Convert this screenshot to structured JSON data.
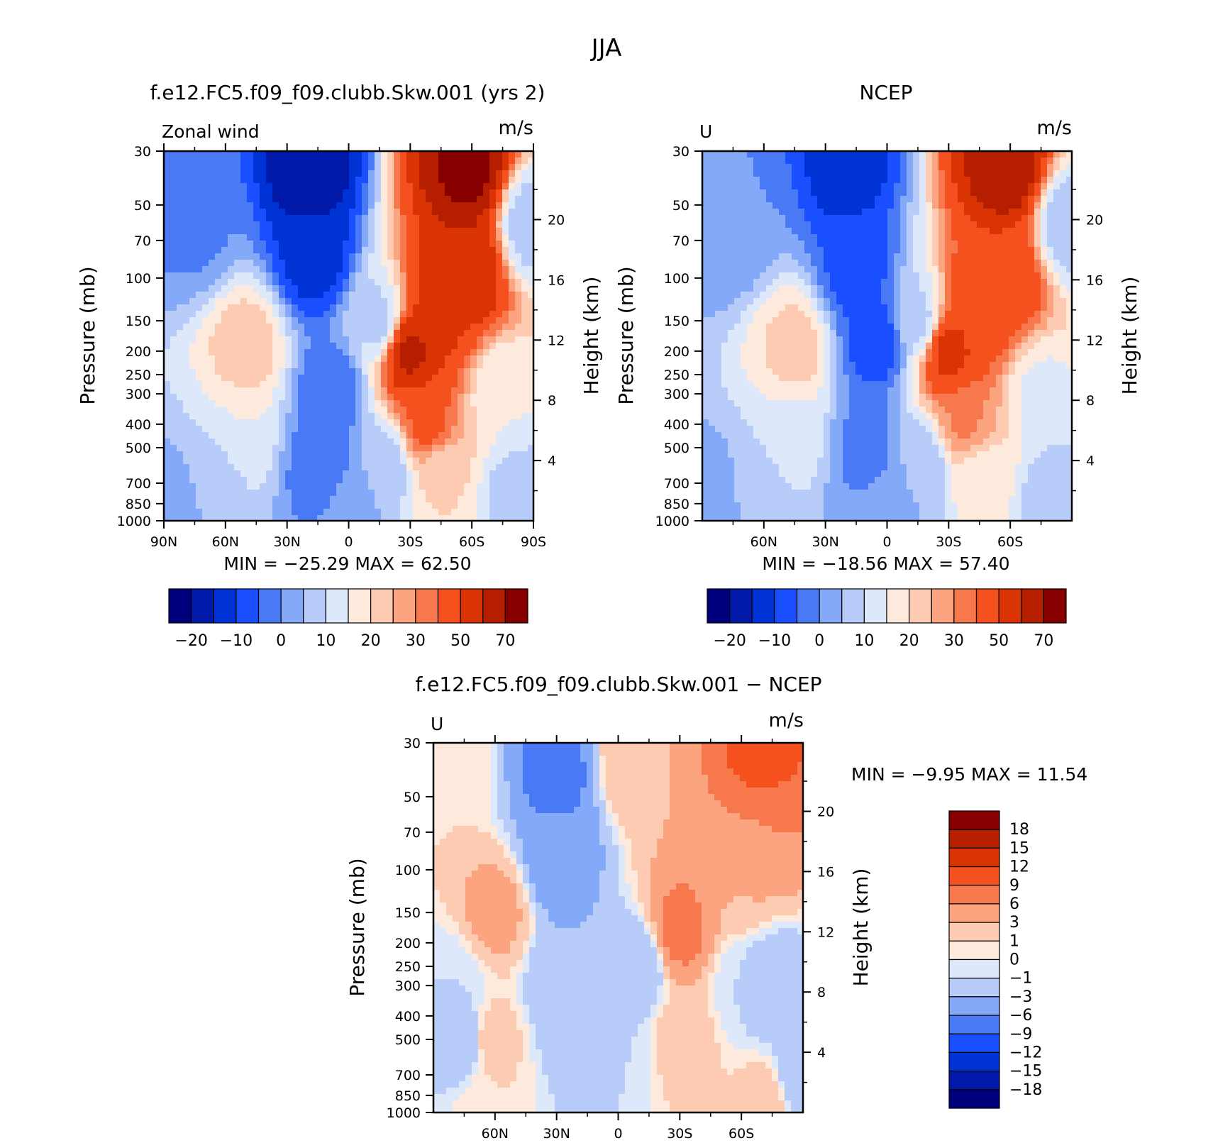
{
  "page": {
    "title": "JJA"
  },
  "chart_data": [
    {
      "type": "heatmap",
      "title": "f.e12.FC5.f09_f09.clubb.Skw.001 (yrs 2)",
      "left_string": "Zonal wind",
      "right_string": "m/s",
      "ylabel": "Pressure (mb)",
      "ylabel2": "Height (km)",
      "x_ticks": [
        "90N",
        "60N",
        "30N",
        "0",
        "30S",
        "60S",
        "90S"
      ],
      "x_tick_values": [
        90,
        60,
        30,
        0,
        -30,
        -60,
        -90
      ],
      "xlim": [
        90,
        -90
      ],
      "y_ticks": [
        30,
        50,
        70,
        100,
        150,
        200,
        250,
        300,
        400,
        500,
        700,
        850,
        1000
      ],
      "ylim": [
        1000,
        30
      ],
      "y_scale": "log",
      "height_ticks": [
        20,
        16,
        12,
        8,
        4
      ],
      "stats": "MIN =  −25.29   MAX =   62.50",
      "min": -25.29,
      "max": 62.5,
      "levels": [
        -25,
        -20,
        -15,
        -10,
        -5,
        0,
        5,
        10,
        15,
        20,
        25,
        30,
        40,
        50,
        60,
        70
      ],
      "colorbar_labels": [
        "−20",
        "−10",
        "0",
        "10",
        "20",
        "30",
        "50",
        "70"
      ],
      "colorbar_label_boundaries": [
        1,
        3,
        5,
        7,
        9,
        11,
        13,
        15
      ],
      "colorbar_colors": [
        "#00007f",
        "#0019a8",
        "#0033d6",
        "#1a4fff",
        "#4a79f5",
        "#84a9f8",
        "#b7ccf9",
        "#dde9fa",
        "#fdeadc",
        "#fccbb2",
        "#fba47f",
        "#f8784d",
        "#f4511e",
        "#da3405",
        "#b51f00",
        "#870000"
      ],
      "features": [
        {
          "lat": 18,
          "p": 35,
          "u": -25
        },
        {
          "lat": 16,
          "p": 80,
          "u": -18
        },
        {
          "lat": 8,
          "p": 300,
          "u": -9
        },
        {
          "lat": 13,
          "p": 600,
          "u": -9
        },
        {
          "lat": 0,
          "p": 900,
          "u": -3
        },
        {
          "lat": 75,
          "p": 60,
          "u": -6
        },
        {
          "lat": 50,
          "p": 200,
          "u": 18
        },
        {
          "lat": 52,
          "p": 420,
          "u": 10
        },
        {
          "lat": 65,
          "p": 700,
          "u": 2
        },
        {
          "lat": 85,
          "p": 900,
          "u": -3
        },
        {
          "lat": -30,
          "p": 200,
          "u": 52
        },
        {
          "lat": -38,
          "p": 400,
          "u": 32
        },
        {
          "lat": -45,
          "p": 650,
          "u": 15
        },
        {
          "lat": -58,
          "p": 35,
          "u": 63
        },
        {
          "lat": -58,
          "p": 90,
          "u": 50
        },
        {
          "lat": -45,
          "p": 130,
          "u": 42
        },
        {
          "lat": -18,
          "p": 600,
          "u": 1
        },
        {
          "lat": -15,
          "p": 150,
          "u": 3
        },
        {
          "lat": -75,
          "p": 300,
          "u": 10
        },
        {
          "lat": -82,
          "p": 800,
          "u": 2
        },
        {
          "lat": -88,
          "p": 60,
          "u": 2
        }
      ]
    },
    {
      "type": "heatmap",
      "title": "NCEP",
      "left_string": "U",
      "right_string": "m/s",
      "ylabel": "Pressure (mb)",
      "ylabel2": "Height (km)",
      "x_ticks": [
        "60N",
        "30N",
        "0",
        "30S",
        "60S"
      ],
      "x_tick_values": [
        60,
        30,
        0,
        -30,
        -60
      ],
      "xlim": [
        90,
        -90
      ],
      "y_ticks": [
        30,
        50,
        70,
        100,
        150,
        200,
        250,
        300,
        400,
        500,
        700,
        850,
        1000
      ],
      "ylim": [
        1000,
        30
      ],
      "y_scale": "log",
      "height_ticks": [
        20,
        16,
        12,
        8,
        4
      ],
      "stats": "MIN =  −18.56   MAX =   57.40",
      "min": -18.56,
      "max": 57.4,
      "levels": [
        -25,
        -20,
        -15,
        -10,
        -5,
        0,
        5,
        10,
        15,
        20,
        25,
        30,
        40,
        50,
        60,
        70
      ],
      "colorbar_labels": [
        "−20",
        "−10",
        "0",
        "10",
        "20",
        "30",
        "50",
        "70"
      ],
      "colorbar_label_boundaries": [
        1,
        3,
        5,
        7,
        9,
        11,
        13,
        15
      ],
      "colorbar_colors": [
        "#00007f",
        "#0019a8",
        "#0033d6",
        "#1a4fff",
        "#4a79f5",
        "#84a9f8",
        "#b7ccf9",
        "#dde9fa",
        "#fdeadc",
        "#fccbb2",
        "#fba47f",
        "#f8784d",
        "#f4511e",
        "#da3405",
        "#b51f00",
        "#870000"
      ],
      "features": [
        {
          "lat": 18,
          "p": 35,
          "u": -18
        },
        {
          "lat": 14,
          "p": 90,
          "u": -13
        },
        {
          "lat": 5,
          "p": 180,
          "u": -14
        },
        {
          "lat": 10,
          "p": 500,
          "u": -7
        },
        {
          "lat": 0,
          "p": 900,
          "u": -4
        },
        {
          "lat": 75,
          "p": 60,
          "u": -5
        },
        {
          "lat": 45,
          "p": 200,
          "u": 17
        },
        {
          "lat": 47,
          "p": 420,
          "u": 9
        },
        {
          "lat": 65,
          "p": 750,
          "u": 1
        },
        {
          "lat": 85,
          "p": 900,
          "u": -4
        },
        {
          "lat": -30,
          "p": 200,
          "u": 43
        },
        {
          "lat": -38,
          "p": 400,
          "u": 26
        },
        {
          "lat": -45,
          "p": 650,
          "u": 12
        },
        {
          "lat": -58,
          "p": 35,
          "u": 57
        },
        {
          "lat": -58,
          "p": 100,
          "u": 38
        },
        {
          "lat": -45,
          "p": 130,
          "u": 36
        },
        {
          "lat": -18,
          "p": 600,
          "u": 1
        },
        {
          "lat": -15,
          "p": 150,
          "u": 3
        },
        {
          "lat": -75,
          "p": 300,
          "u": 9
        },
        {
          "lat": -82,
          "p": 800,
          "u": 1
        },
        {
          "lat": -88,
          "p": 60,
          "u": 2
        }
      ]
    },
    {
      "type": "heatmap",
      "title": "f.e12.FC5.f09_f09.clubb.Skw.001 − NCEP",
      "left_string": "U",
      "right_string": "m/s",
      "ylabel": "Pressure (mb)",
      "ylabel2": "Height (km)",
      "x_ticks": [
        "60N",
        "30N",
        "0",
        "30S",
        "60S"
      ],
      "x_tick_values": [
        60,
        30,
        0,
        -30,
        -60
      ],
      "xlim": [
        90,
        -90
      ],
      "y_ticks": [
        30,
        50,
        70,
        100,
        150,
        200,
        250,
        300,
        400,
        500,
        700,
        850,
        1000
      ],
      "ylim": [
        1000,
        30
      ],
      "y_scale": "log",
      "height_ticks": [
        20,
        16,
        12,
        8,
        4
      ],
      "stats": "MIN =   −9.95   MAX =   11.54",
      "min": -9.95,
      "max": 11.54,
      "levels": [
        -18,
        -15,
        -12,
        -9,
        -6,
        -3,
        -1,
        0,
        1,
        3,
        6,
        9,
        12,
        15,
        18
      ],
      "colorbar_labels": [
        "18",
        "15",
        "12",
        "9",
        "6",
        "3",
        "1",
        "0",
        "−1",
        "−3",
        "−6",
        "−9",
        "−12",
        "−15",
        "−18"
      ],
      "colorbar_colors": [
        "#00007f",
        "#0019a8",
        "#0033d6",
        "#1a4fff",
        "#4a79f5",
        "#84a9f8",
        "#b7ccf9",
        "#dde9fa",
        "#fdeadc",
        "#fccbb2",
        "#fba47f",
        "#f8784d",
        "#f4511e",
        "#da3405",
        "#b51f00",
        "#870000"
      ],
      "features": [
        {
          "lat": 60,
          "p": 150,
          "u": 4
        },
        {
          "lat": 62,
          "p": 500,
          "u": 2
        },
        {
          "lat": 64,
          "p": 950,
          "u": 1
        },
        {
          "lat": 30,
          "p": 40,
          "u": -7
        },
        {
          "lat": 30,
          "p": 90,
          "u": -5
        },
        {
          "lat": 28,
          "p": 300,
          "u": -3
        },
        {
          "lat": 80,
          "p": 40,
          "u": 1
        },
        {
          "lat": 80,
          "p": 300,
          "u": -1
        },
        {
          "lat": 75,
          "p": 500,
          "u": -3
        },
        {
          "lat": -8,
          "p": 35,
          "u": 3
        },
        {
          "lat": -10,
          "p": 250,
          "u": -3
        },
        {
          "lat": 0,
          "p": 600,
          "u": -1
        },
        {
          "lat": -30,
          "p": 180,
          "u": 7
        },
        {
          "lat": -32,
          "p": 500,
          "u": 2
        },
        {
          "lat": -38,
          "p": 850,
          "u": 1
        },
        {
          "lat": -70,
          "p": 35,
          "u": 10
        },
        {
          "lat": -70,
          "p": 70,
          "u": 6
        },
        {
          "lat": -60,
          "p": 110,
          "u": 3
        },
        {
          "lat": -75,
          "p": 300,
          "u": -3
        },
        {
          "lat": -60,
          "p": 300,
          "u": -1
        },
        {
          "lat": -72,
          "p": 900,
          "u": 2
        },
        {
          "lat": 15,
          "p": 500,
          "u": -2
        },
        {
          "lat": -88,
          "p": 700,
          "u": -3
        }
      ]
    }
  ]
}
